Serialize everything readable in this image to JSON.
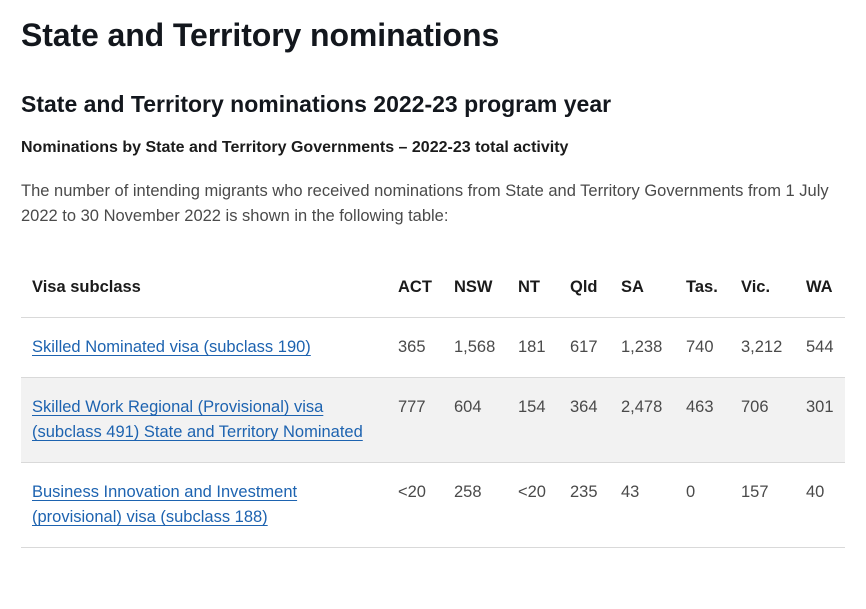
{
  "page_title": "State and Territory nominations",
  "section_title": "State and Territory nominations 2022-23 program year",
  "subsection_title": "Nominations by State and Territory Governments – 2022-23 total activity",
  "intro_text": "The number of intending migrants who received nominations from State and Territory Governments from 1 July 2022 to 30 November 2022 is shown in the following table:",
  "table": {
    "headers": [
      "Visa subclass",
      "ACT",
      "NSW",
      "NT",
      "Qld",
      "SA",
      "Tas.",
      "Vic.",
      "WA"
    ],
    "rows": [
      {
        "visa": "Skilled Nominated visa (subclass 190)",
        "values": [
          "365",
          "1,568",
          "181",
          "617",
          "1,238",
          "740",
          "3,212",
          "544"
        ]
      },
      {
        "visa": "Skilled Work Regional (Provisional) visa (subclass 491) State and Territory Nominated",
        "values": [
          "777",
          "604",
          "154",
          "364",
          "2,478",
          "463",
          "706",
          "301"
        ]
      },
      {
        "visa": "Business Innovation and Investment (provisional) visa (subclass 188)",
        "values": [
          "<20",
          "258",
          "<20",
          "235",
          "43",
          "0",
          "157",
          "40"
        ]
      }
    ]
  }
}
